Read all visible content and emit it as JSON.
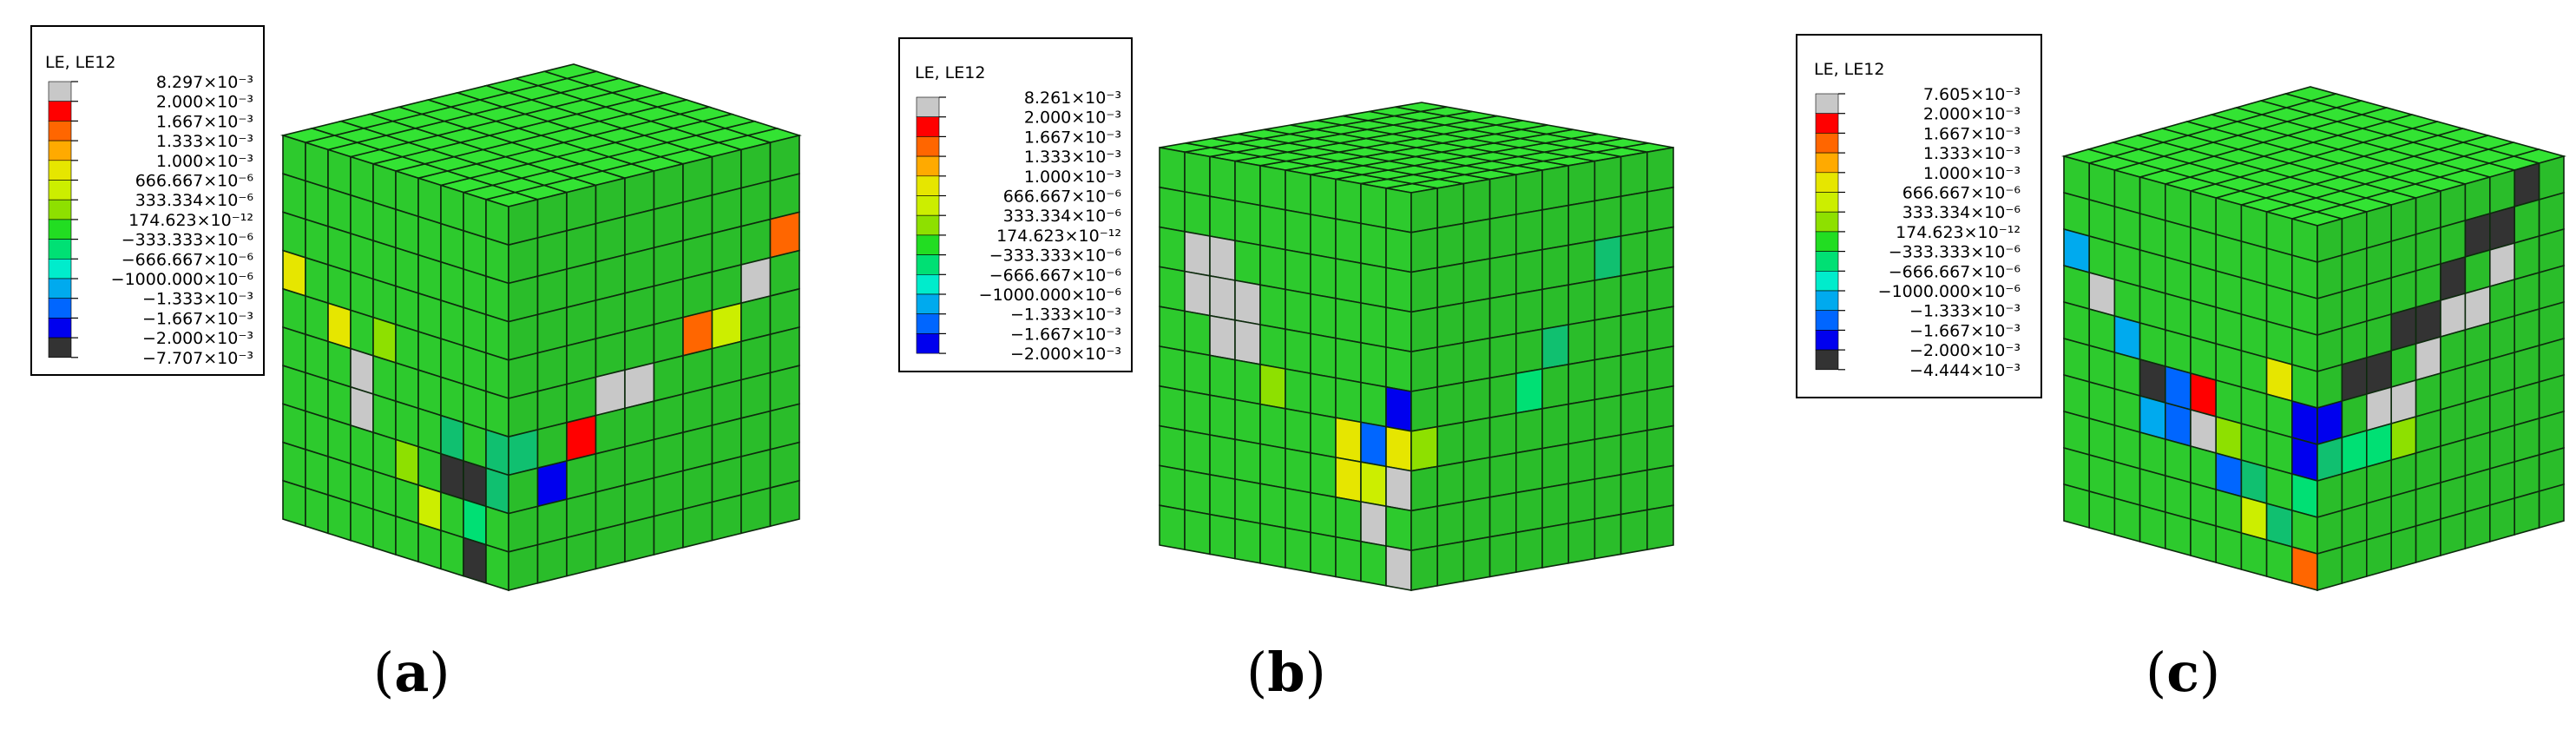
{
  "colors": {
    "scale": [
      "#c8c8c8",
      "#ff0000",
      "#ff6600",
      "#ffaa00",
      "#e6e600",
      "#ccee00",
      "#8ee000",
      "#22dd22",
      "#00e074",
      "#00eccc",
      "#00aaee",
      "#0066ff",
      "#0000ee",
      "#333333"
    ],
    "scale_b": [
      "#c8c8c8",
      "#ff0000",
      "#ff6600",
      "#ffaa00",
      "#e6e600",
      "#ccee00",
      "#8ee000",
      "#22dd22",
      "#00e074",
      "#00eccc",
      "#00aaee",
      "#0066ff",
      "#0000ee"
    ],
    "mesh_base": "#2fd22f",
    "grid_line": "#0d2a0d"
  },
  "panels": [
    {
      "id": "a",
      "label": "a",
      "legend": {
        "title": "LE, LE12",
        "values": [
          "8.297×10⁻³",
          "2.000×10⁻³",
          "1.667×10⁻³",
          "1.333×10⁻³",
          "1.000×10⁻³",
          "666.667×10⁻⁶",
          "333.334×10⁻⁶",
          "174.623×10⁻¹²",
          "−333.333×10⁻⁶",
          "−666.667×10⁻⁶",
          "−1000.000×10⁻⁶",
          "−1.333×10⁻³",
          "−1.667×10⁻³",
          "−2.000×10⁻³",
          "−7.707×10⁻³"
        ]
      }
    },
    {
      "id": "b",
      "label": "b",
      "legend": {
        "title": "LE, LE12",
        "values": [
          "8.261×10⁻³",
          "2.000×10⁻³",
          "1.667×10⁻³",
          "1.333×10⁻³",
          "1.000×10⁻³",
          "666.667×10⁻⁶",
          "333.334×10⁻⁶",
          "174.623×10⁻¹²",
          "−333.333×10⁻⁶",
          "−666.667×10⁻⁶",
          "−1000.000×10⁻⁶",
          "−1.333×10⁻³",
          "−1.667×10⁻³",
          "−2.000×10⁻³"
        ]
      }
    },
    {
      "id": "c",
      "label": "c",
      "legend": {
        "title": "LE, LE12",
        "values": [
          "7.605×10⁻³",
          "2.000×10⁻³",
          "1.667×10⁻³",
          "1.333×10⁻³",
          "1.000×10⁻³",
          "666.667×10⁻⁶",
          "333.334×10⁻⁶",
          "174.623×10⁻¹²",
          "−333.333×10⁻⁶",
          "−666.667×10⁻⁶",
          "−1000.000×10⁻⁶",
          "−1.333×10⁻³",
          "−1.667×10⁻³",
          "−2.000×10⁻³",
          "−4.444×10⁻³"
        ]
      }
    }
  ]
}
